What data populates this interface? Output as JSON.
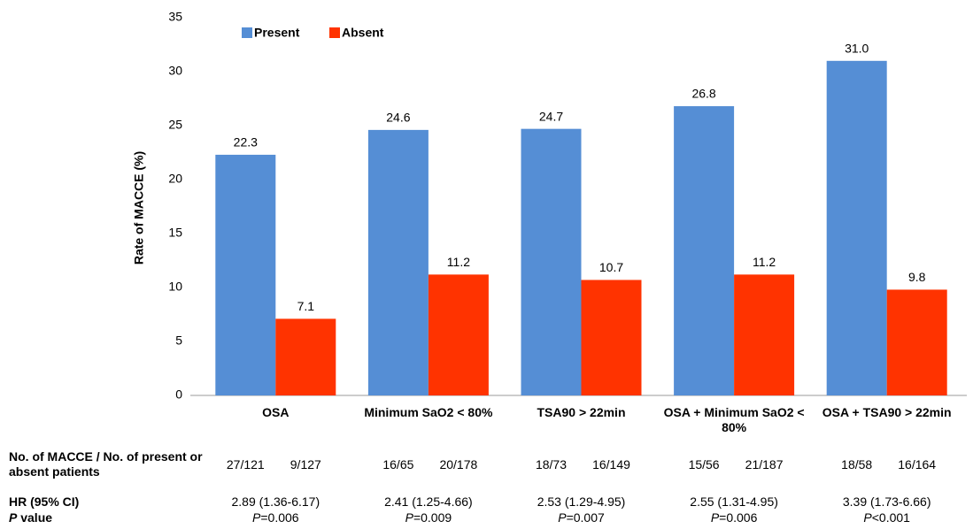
{
  "chart_data": {
    "type": "bar",
    "y_label": "Rate of MACCE (%)",
    "categories": [
      "OSA",
      "Minimum SaO2 < 80%",
      "TSA90 > 22min",
      "OSA + Minimum SaO2 < 80%",
      "OSA + TSA90 > 22min"
    ],
    "series": [
      {
        "name": "Present",
        "color": "#558ed5",
        "values": [
          22.3,
          24.6,
          24.7,
          26.8,
          31.0
        ],
        "value_labels": [
          "22.3",
          "24.6",
          "24.7",
          "26.8",
          "31.0"
        ]
      },
      {
        "name": "Absent",
        "color": "#ff3300",
        "values": [
          7.1,
          11.2,
          10.7,
          11.2,
          9.8
        ],
        "value_labels": [
          "7.1",
          "11.2",
          "10.7",
          "11.2",
          "9.8"
        ]
      }
    ],
    "ylim": [
      0,
      35
    ],
    "yticks": [
      0,
      5,
      10,
      15,
      20,
      25,
      30,
      35
    ],
    "grid": false,
    "table": {
      "rows": [
        {
          "label": "No. of MACCE / No. of present or absent patients",
          "cells": [
            [
              "27/121",
              "9/127"
            ],
            [
              "16/65",
              "20/178"
            ],
            [
              "18/73",
              "16/149"
            ],
            [
              "15/56",
              "21/187"
            ],
            [
              "18/58",
              "16/164"
            ]
          ]
        },
        {
          "label": "HR (95% CI)",
          "cells": [
            "2.89 (1.36-6.17)",
            "2.41 (1.25-4.66)",
            "2.53 (1.29-4.95)",
            "2.55 (1.31-4.95)",
            "3.39 (1.73-6.66)"
          ]
        },
        {
          "label": "P value",
          "cells": [
            "P=0.006",
            "P=0.009",
            "P=0.007",
            "P=0.006",
            "P<0.001"
          ]
        }
      ]
    }
  }
}
